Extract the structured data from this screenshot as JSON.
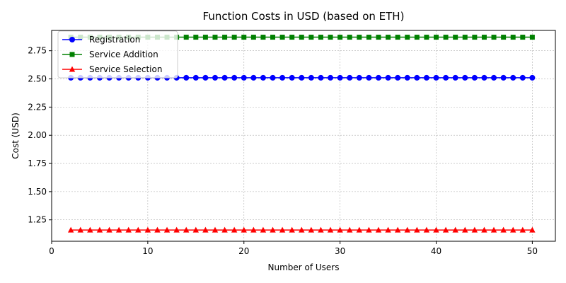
{
  "chart_data": {
    "type": "line",
    "title": "Function Costs in USD (based on ETH)",
    "xlabel": "Number of Users",
    "ylabel": "Cost (USD)",
    "xlim": [
      0,
      52.4
    ],
    "ylim": [
      1.06,
      2.93
    ],
    "xticks": [
      0,
      10,
      20,
      30,
      40,
      50
    ],
    "yticks": [
      1.25,
      1.5,
      1.75,
      2.0,
      2.25,
      2.5,
      2.75
    ],
    "ytick_labels": [
      "1.25",
      "1.50",
      "1.75",
      "2.00",
      "2.25",
      "2.50",
      "2.75"
    ],
    "xtick_labels": [
      "0",
      "10",
      "20",
      "30",
      "40",
      "50"
    ],
    "grid": true,
    "legend_position": "upper-left",
    "x": [
      2,
      3,
      4,
      5,
      6,
      7,
      8,
      9,
      10,
      11,
      12,
      13,
      14,
      15,
      16,
      17,
      18,
      19,
      20,
      21,
      22,
      23,
      24,
      25,
      26,
      27,
      28,
      29,
      30,
      31,
      32,
      33,
      34,
      35,
      36,
      37,
      38,
      39,
      40,
      41,
      42,
      43,
      44,
      45,
      46,
      47,
      48,
      49,
      50
    ],
    "series": [
      {
        "name": "Registration",
        "y_constant": 2.51,
        "color": "#0000ff",
        "marker": "circle"
      },
      {
        "name": "Service Addition",
        "y_constant": 2.87,
        "color": "#008000",
        "marker": "square"
      },
      {
        "name": "Service Selection",
        "y_constant": 1.16,
        "color": "#ff0000",
        "marker": "triangle"
      }
    ]
  }
}
